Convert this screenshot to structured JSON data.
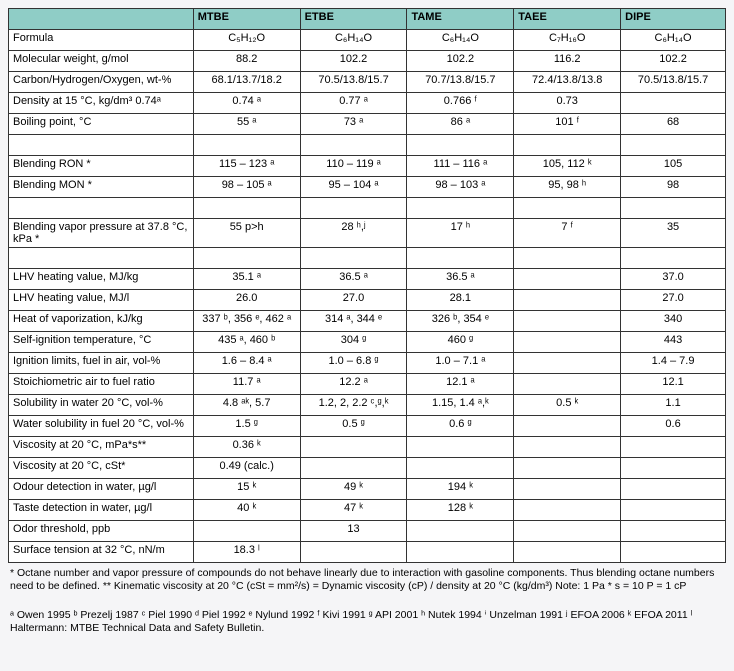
{
  "headers": [
    "",
    "MTBE",
    "ETBE",
    "TAME",
    "TAEE",
    "DIPE"
  ],
  "rows": [
    {
      "label": "Formula",
      "vals": [
        "C₅H₁₂O",
        "C₆H₁₄O",
        "C₆H₁₄O",
        "C₇H₁₆O",
        "C₆H₁₄O"
      ]
    },
    {
      "label": "Molecular weight, g/mol",
      "vals": [
        "88.2",
        "102.2",
        "102.2",
        "116.2",
        "102.2"
      ]
    },
    {
      "label": "Carbon/Hydrogen/Oxygen, wt-%",
      "vals": [
        "68.1/13.7/18.2",
        "70.5/13.8/15.7",
        "70.7/13.8/15.7",
        "72.4/13.8/13.8",
        "70.5/13.8/15.7"
      ]
    },
    {
      "label": "Density at 15 °C, kg/dm³ 0.74ᵃ",
      "vals": [
        "0.74 ᵃ",
        "0.77 ᵃ",
        "0.766 ᶠ",
        "0.73",
        ""
      ]
    },
    {
      "label": "Boiling point, °C",
      "vals": [
        "55 ᵃ",
        "73 ᵃ",
        "86 ᵃ",
        "101 ᶠ",
        "68"
      ]
    },
    {
      "label": "",
      "vals": [
        "",
        "",
        "",
        "",
        ""
      ]
    },
    {
      "label": "Blending RON *",
      "vals": [
        "115 – 123 ᵃ",
        "110 – 119 ᵃ",
        "111 – 116 ᵃ",
        "105, 112 ᵏ",
        "105"
      ]
    },
    {
      "label": "Blending MON *",
      "vals": [
        "98 – 105 ᵃ",
        "95 – 104 ᵃ",
        "98 – 103 ᵃ",
        "95, 98 ʰ",
        "98"
      ]
    },
    {
      "label": "",
      "vals": [
        "",
        "",
        "",
        "",
        ""
      ]
    },
    {
      "label": "Blending vapor pressure at 37.8 °C, kPa *",
      "vals": [
        "55 p>h",
        "28 ʰ,ʲ",
        "17 ʰ",
        "7 ᶠ",
        "35"
      ]
    },
    {
      "label": "",
      "vals": [
        "",
        "",
        "",
        "",
        ""
      ]
    },
    {
      "label": "LHV heating value, MJ/kg",
      "vals": [
        "35.1 ᵃ",
        "36.5 ᵃ",
        "36.5 ᵃ",
        "",
        "37.0"
      ]
    },
    {
      "label": "LHV heating value, MJ/l",
      "vals": [
        "26.0",
        "27.0",
        "28.1",
        "",
        "27.0"
      ]
    },
    {
      "label": "Heat of vaporization, kJ/kg",
      "vals": [
        "337 ᵇ, 356 ᵉ, 462 ᵃ",
        "314 ᵃ, 344 ᵉ",
        "326 ᵇ, 354 ᵉ",
        "",
        "340"
      ]
    },
    {
      "label": "Self-ignition temperature,  °C",
      "vals": [
        "435 ᵃ, 460 ᵇ",
        "304 ᵍ",
        "460 ᵍ",
        "",
        "443"
      ]
    },
    {
      "label": "Ignition limits, fuel in air, vol-%",
      "vals": [
        "1.6 – 8.4 ᵃ",
        "1.0 – 6.8 ᵍ",
        "1.0 – 7.1 ᵃ",
        "",
        "1.4 – 7.9"
      ]
    },
    {
      "label": "Stoichiometric air to fuel ratio",
      "vals": [
        "11.7 ᵃ",
        "12.2 ᵃ",
        "12.1 ᵃ",
        "",
        "12.1"
      ]
    },
    {
      "label": "Solubility in water 20 °C, vol-%",
      "vals": [
        "4.8 ᵃᵏ, 5.7",
        "1.2, 2, 2.2 ᶜ,ᵍ,ᵏ",
        "1.15, 1.4 ᵃ,ᵏ",
        "0.5 ᵏ",
        "1.1"
      ]
    },
    {
      "label": "Water solubility in fuel 20 °C, vol-%",
      "vals": [
        "1.5 ᵍ",
        "0.5 ᵍ",
        "0.6 ᵍ",
        "",
        "0.6"
      ]
    },
    {
      "label": "Viscosity at 20 °C, mPa*s**",
      "vals": [
        "0.36 ᵏ",
        "",
        "",
        "",
        ""
      ]
    },
    {
      "label": "Viscosity at 20 °C, cSt*",
      "vals": [
        "0.49 (calc.)",
        "",
        "",
        "",
        ""
      ]
    },
    {
      "label": "Odour detection in water, µg/l",
      "vals": [
        "15 ᵏ",
        "49 ᵏ",
        "194 ᵏ",
        "",
        ""
      ]
    },
    {
      "label": "Taste detection in water, µg/l",
      "vals": [
        "40 ᵏ",
        "47 ᵏ",
        "128 ᵏ",
        "",
        ""
      ]
    },
    {
      "label": "Odor threshold, ppb",
      "vals": [
        "",
        "13",
        "",
        "",
        ""
      ]
    },
    {
      "label": "Surface tension at 32 °C, nN/m",
      "vals": [
        "18.3 ˡ",
        "",
        "",
        "",
        ""
      ]
    }
  ],
  "footnote1": "* Octane  number  and vapor  pressure  of compounds do not behave  linearly  due to interaction  with gasoline  components. Thus blending octane  numbers  need  to be defined.  ** Kinematic viscosity  at 20 °C (cSt = mm²/s)  = Dynamic  viscosity  (cP) / density  at 20 °C (kg/dm³)  Note: 1 Pa * s = 10 P = 1 cP",
  "footnote2": "ᵃ Owen  1995  ᵇ Prezelj  1987  ᶜ Piel 1990  ᵈ Piel 1992  ᵉ Nylund  1992  ᶠ Kivi 1991  ᵍ API 2001  ʰ Nutek  1994  ⁱ Unzelman  1991  ʲ EFOA 2006  ᵏ EFOA  2011  ˡ Haltermann: MTBE Technical  Data  and Safety  Bulletin."
}
